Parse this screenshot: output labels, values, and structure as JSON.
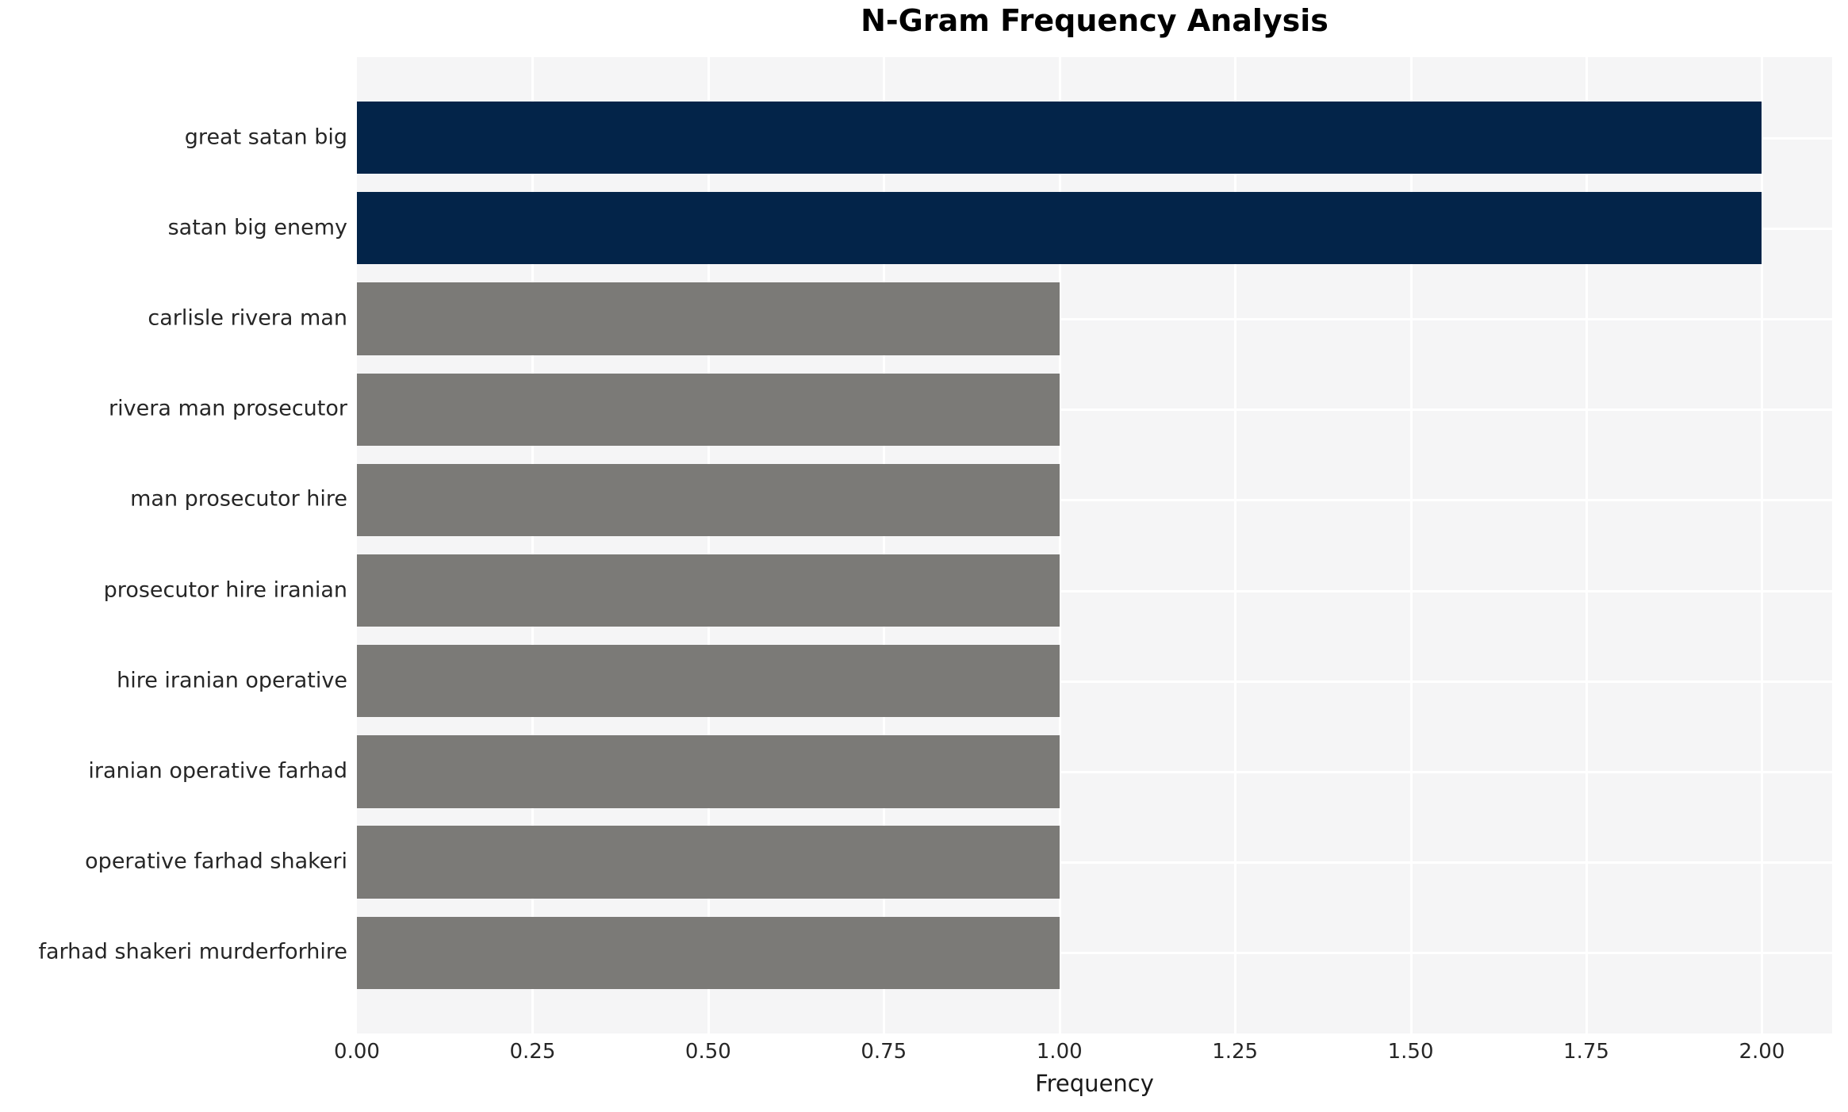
{
  "title": "N-Gram Frequency Analysis",
  "chart_data": {
    "type": "bar",
    "orientation": "horizontal",
    "title": "N-Gram Frequency Analysis",
    "xlabel": "Frequency",
    "ylabel": "",
    "categories": [
      "great satan big",
      "satan big enemy",
      "carlisle rivera man",
      "rivera man prosecutor",
      "man prosecutor hire",
      "prosecutor hire iranian",
      "hire iranian operative",
      "iranian operative farhad",
      "operative farhad shakeri",
      "farhad shakeri murderforhire"
    ],
    "values": [
      2,
      2,
      1,
      1,
      1,
      1,
      1,
      1,
      1,
      1
    ],
    "bar_colors": [
      "#032449",
      "#032449",
      "#7b7a77",
      "#7b7a77",
      "#7b7a77",
      "#7b7a77",
      "#7b7a77",
      "#7b7a77",
      "#7b7a77",
      "#7b7a77"
    ],
    "highlight_color": "#032449",
    "default_color": "#7b7a77",
    "xlim": [
      0,
      2.1
    ],
    "xticks": [
      0,
      0.25,
      0.5,
      0.75,
      1.0,
      1.25,
      1.5,
      1.75,
      2.0
    ],
    "xtick_labels": [
      "0.00",
      "0.25",
      "0.50",
      "0.75",
      "1.00",
      "1.25",
      "1.50",
      "1.75",
      "2.00"
    ],
    "grid": true,
    "legend": false,
    "plot_bg": "#f5f5f6",
    "grid_color": "#ffffff"
  }
}
